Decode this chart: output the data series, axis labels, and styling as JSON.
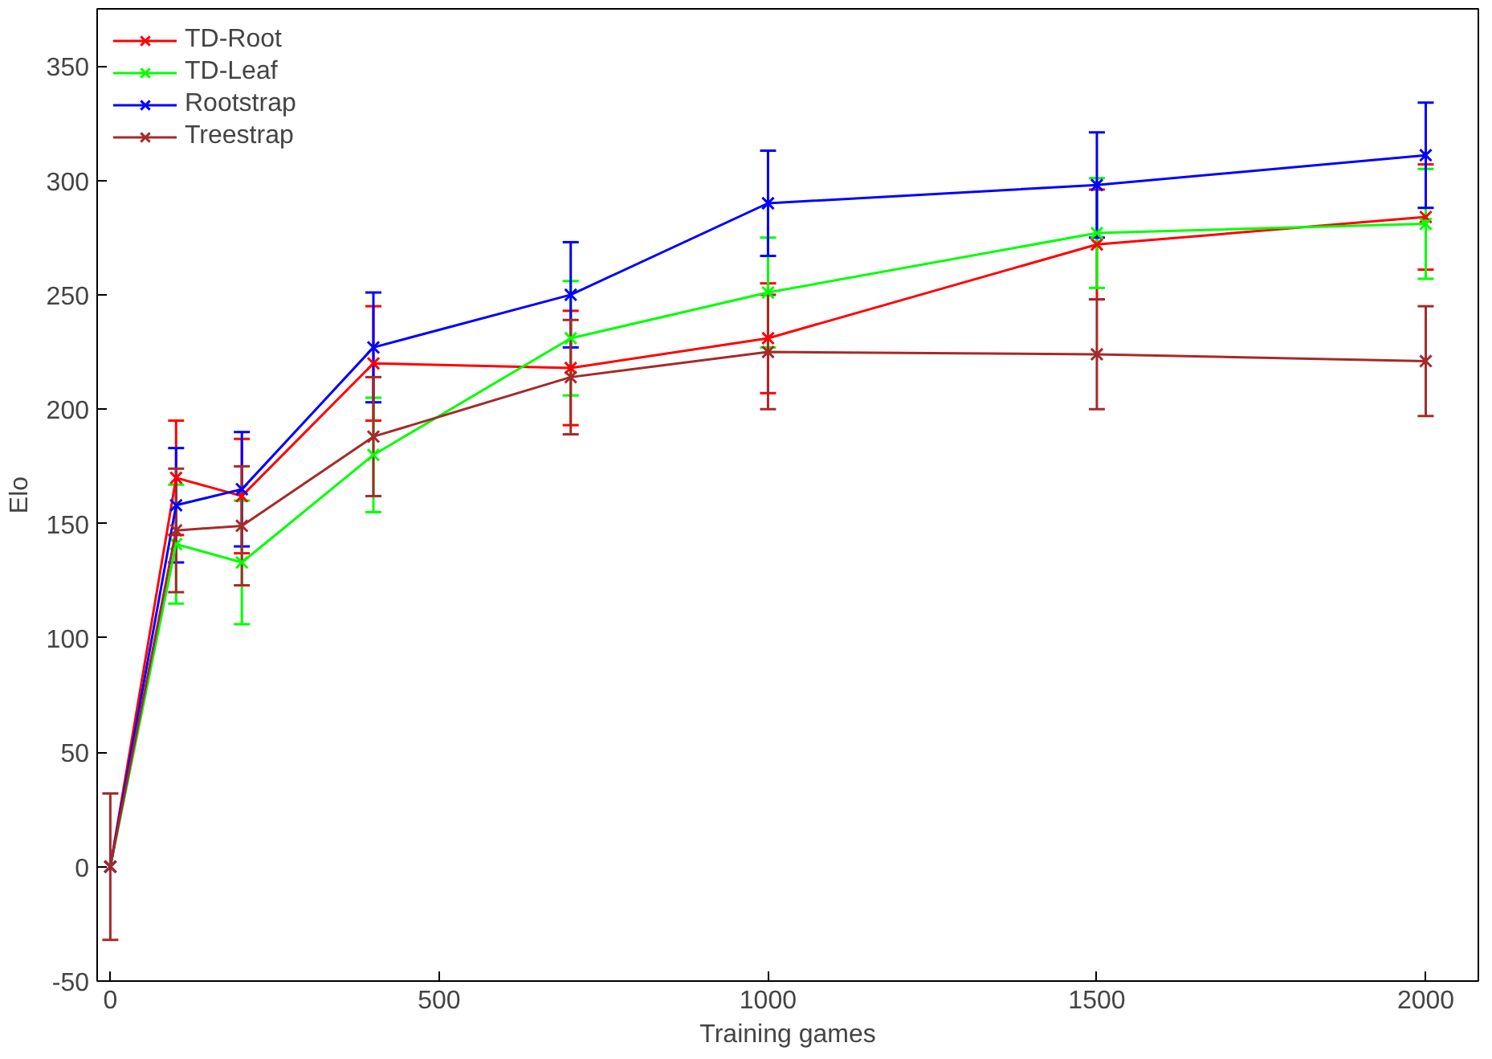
{
  "chart_data": {
    "type": "line",
    "xlabel": "Training games",
    "ylabel": "Elo",
    "x": [
      0,
      100,
      200,
      400,
      700,
      1000,
      1500,
      2000
    ],
    "xlim": [
      -20,
      2080
    ],
    "ylim": [
      -50,
      375
    ],
    "xticks": [
      0,
      500,
      1000,
      1500,
      2000
    ],
    "yticks": [
      -50,
      0,
      50,
      100,
      150,
      200,
      250,
      300,
      350
    ],
    "grid": false,
    "legend": "top left",
    "marker": "cross",
    "line_style": "solid",
    "series": [
      {
        "name": "TD-Root",
        "color": "#ff0000",
        "values": [
          0,
          170,
          162,
          220,
          218,
          231,
          272,
          284
        ],
        "errors": [
          null,
          25,
          25,
          25,
          25,
          24,
          24,
          23
        ]
      },
      {
        "name": "TD-Leaf",
        "color": "#00ff00",
        "values": [
          0,
          141,
          133,
          180,
          231,
          251,
          277,
          281
        ],
        "errors": [
          null,
          26,
          27,
          25,
          25,
          24,
          24,
          24
        ]
      },
      {
        "name": "Rootstrap",
        "color": "#0000ff",
        "values": [
          0,
          158,
          165,
          227,
          250,
          290,
          298,
          311
        ],
        "errors": [
          null,
          25,
          25,
          24,
          23,
          23,
          23,
          23
        ]
      },
      {
        "name": "Treestrap",
        "color": "#a52a2a",
        "values": [
          0,
          147,
          149,
          188,
          214,
          225,
          224,
          221
        ],
        "errors": [
          32,
          27,
          26,
          26,
          25,
          25,
          24,
          24
        ]
      }
    ]
  }
}
